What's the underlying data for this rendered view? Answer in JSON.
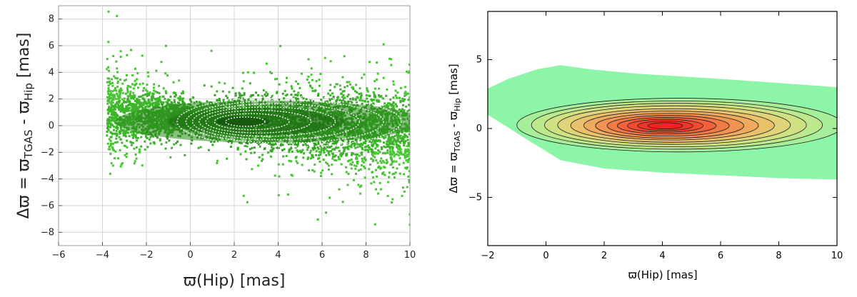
{
  "chart_data": [
    {
      "type": "scatter",
      "style": "density scatter with overlaid white dashed contours",
      "xlim": [
        -6,
        10
      ],
      "ylim": [
        -9,
        9
      ],
      "x_ticks": [
        -6,
        -4,
        -2,
        0,
        2,
        4,
        6,
        8,
        10
      ],
      "y_ticks": [
        -8,
        -6,
        -4,
        -2,
        0,
        2,
        4,
        6,
        8
      ],
      "x_tick_labels": [
        "−6",
        "−4",
        "−2",
        "0",
        "2",
        "4",
        "6",
        "8",
        "10"
      ],
      "y_tick_labels": [
        "−8",
        "−6",
        "−4",
        "−2",
        "0",
        "2",
        "4",
        "6",
        "8"
      ],
      "xlabel": "ϖ(Hip)  [mas]",
      "ylabel": {
        "prefix": "Δϖ = ϖ",
        "sub1": "TGAS",
        "mid": " - ϖ",
        "sub2": "Hip",
        "suffix": " [mas]"
      },
      "grid": true,
      "point_color": "#2e9e1e",
      "contour_color": "#ffffff",
      "density_peak": {
        "x": 2.4,
        "y": 0.3
      },
      "contour_levels": [
        {
          "cx": 4.5,
          "cy": 0.3,
          "rx": 5.1,
          "ry": 1.9
        },
        {
          "cx": 4.3,
          "cy": 0.3,
          "rx": 4.5,
          "ry": 1.6
        },
        {
          "cx": 3.9,
          "cy": 0.3,
          "rx": 3.8,
          "ry": 1.35
        },
        {
          "cx": 3.5,
          "cy": 0.3,
          "rx": 3.1,
          "ry": 1.1
        },
        {
          "cx": 3.1,
          "cy": 0.3,
          "rx": 2.4,
          "ry": 0.85
        },
        {
          "cx": 2.8,
          "cy": 0.3,
          "rx": 1.7,
          "ry": 0.6
        },
        {
          "cx": 2.5,
          "cy": 0.3,
          "rx": 0.9,
          "ry": 0.35
        }
      ]
    },
    {
      "type": "heatmap",
      "style": "filled kernel-density contours",
      "xlim": [
        -2,
        10
      ],
      "ylim": [
        -8.5,
        8.5
      ],
      "x_ticks": [
        -2,
        0,
        2,
        4,
        6,
        8,
        10
      ],
      "y_ticks": [
        -5,
        0,
        5
      ],
      "x_tick_labels": [
        "−2",
        "0",
        "2",
        "4",
        "6",
        "8",
        "10"
      ],
      "y_tick_labels": [
        "−5",
        "0",
        "5"
      ],
      "xlabel": "ϖ(Hip)  [mas]",
      "ylabel": {
        "prefix": "Δϖ = ϖ",
        "sub1": "TGAS",
        "mid": " - ϖ",
        "sub2": "Hip",
        "suffix": " [mas]"
      },
      "grid": false,
      "support_region": [
        [
          -2.0,
          2.9
        ],
        [
          -2.0,
          1.0
        ],
        [
          -0.5,
          -1.0
        ],
        [
          0.5,
          -2.3
        ],
        [
          2.0,
          -2.9
        ],
        [
          4.0,
          -3.2
        ],
        [
          6.0,
          -3.4
        ],
        [
          8.0,
          -3.6
        ],
        [
          10.0,
          -3.7
        ],
        [
          10.0,
          3.0
        ],
        [
          8.0,
          3.3
        ],
        [
          6.0,
          3.6
        ],
        [
          3.0,
          4.0
        ],
        [
          1.5,
          4.3
        ],
        [
          0.5,
          4.6
        ],
        [
          -0.3,
          4.3
        ],
        [
          -1.3,
          3.6
        ]
      ],
      "density_peak": {
        "x": 4.1,
        "y": 0.2
      },
      "colors": [
        "#8df5a8",
        "#a6ee9a",
        "#bde98e",
        "#cfe283",
        "#dfd47a",
        "#e9c16d",
        "#eeab5f",
        "#f09353",
        "#f27a47",
        "#f3623c",
        "#f34b31",
        "#f23528",
        "#ef2420"
      ],
      "contour_levels": [
        {
          "cx": 4.6,
          "cy": 0.25,
          "rx": 5.6,
          "ry": 1.95
        },
        {
          "cx": 4.5,
          "cy": 0.25,
          "rx": 5.0,
          "ry": 1.75
        },
        {
          "cx": 4.45,
          "cy": 0.25,
          "rx": 4.5,
          "ry": 1.58
        },
        {
          "cx": 4.4,
          "cy": 0.25,
          "rx": 4.0,
          "ry": 1.4
        },
        {
          "cx": 4.35,
          "cy": 0.22,
          "rx": 3.5,
          "ry": 1.22
        },
        {
          "cx": 4.3,
          "cy": 0.22,
          "rx": 3.0,
          "ry": 1.05
        },
        {
          "cx": 4.25,
          "cy": 0.2,
          "rx": 2.55,
          "ry": 0.9
        },
        {
          "cx": 4.2,
          "cy": 0.2,
          "rx": 2.1,
          "ry": 0.75
        },
        {
          "cx": 4.15,
          "cy": 0.2,
          "rx": 1.7,
          "ry": 0.6
        },
        {
          "cx": 4.1,
          "cy": 0.2,
          "rx": 1.3,
          "ry": 0.47
        },
        {
          "cx": 4.1,
          "cy": 0.2,
          "rx": 0.95,
          "ry": 0.35
        },
        {
          "cx": 4.1,
          "cy": 0.2,
          "rx": 0.6,
          "ry": 0.23
        }
      ]
    }
  ]
}
